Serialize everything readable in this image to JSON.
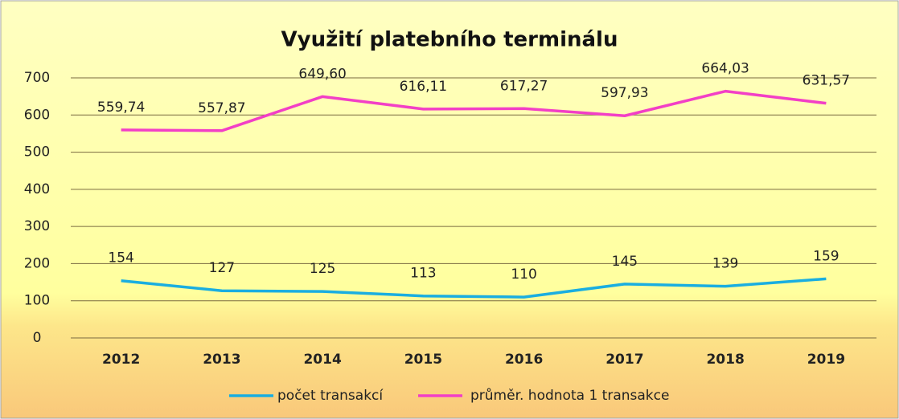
{
  "chart_data": {
    "type": "line",
    "title": "Využití platebního terminálu",
    "categories": [
      "2012",
      "2013",
      "2014",
      "2015",
      "2016",
      "2017",
      "2018",
      "2019"
    ],
    "series": [
      {
        "name": "počet transakcí",
        "color": "#1aaee0",
        "values": [
          154,
          127,
          125,
          113,
          110,
          145,
          139,
          159
        ]
      },
      {
        "name": "průměr. hodnota 1 transakce",
        "color": "#f23fc6",
        "values": [
          559.74,
          557.87,
          649.6,
          616.11,
          617.27,
          597.93,
          664.03,
          631.57
        ],
        "value_labels": [
          "559,74",
          "557,87",
          "649,60",
          "616,11",
          "617,27",
          "597,93",
          "664,03",
          "631,57"
        ]
      }
    ],
    "ylim": [
      0,
      700
    ],
    "yticks": [
      0,
      100,
      200,
      300,
      400,
      500,
      600,
      700
    ],
    "grid": true,
    "legend": "bottom"
  }
}
